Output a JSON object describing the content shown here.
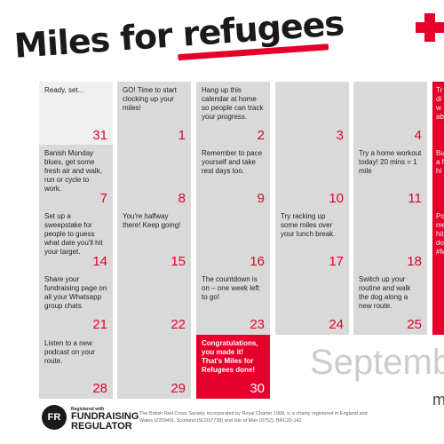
{
  "header": {
    "title_part1": "Miles for ",
    "title_part2": "refugees"
  },
  "cells": [
    {
      "text": "Ready, set...",
      "num": "31"
    },
    {
      "text": "GO! Time to start clocking up your miles!",
      "num": "1"
    },
    {
      "text": "Hang up this calendar at home so people can track your progress.",
      "num": "2"
    },
    {
      "text": "",
      "num": "3"
    },
    {
      "text": "",
      "num": "4"
    },
    {
      "text": "Banish Monday blues, get some fresh air and walk, run or cycle to work.",
      "num": "7"
    },
    {
      "text": "",
      "num": "8"
    },
    {
      "text": "Remember to pace yourself and take rest days too.",
      "num": "9"
    },
    {
      "text": "",
      "num": "10"
    },
    {
      "text": "Try a home workout today! 20 mins = 1 mile",
      "num": "11"
    },
    {
      "text": "Set up a sweepstake for people to guess what date you'll hit your target.",
      "num": "14"
    },
    {
      "text": "You're halfway there! Keep going!",
      "num": "15"
    },
    {
      "text": "",
      "num": "16"
    },
    {
      "text": "Try racking up some miles over your lunch break.",
      "num": "17"
    },
    {
      "text": "",
      "num": "18"
    },
    {
      "text": "Share your fundraising page on all your Whatsapp group chats.",
      "num": "21"
    },
    {
      "text": "",
      "num": "22"
    },
    {
      "text": "The countdown is on – one week left to go!",
      "num": "23"
    },
    {
      "text": "",
      "num": "24"
    },
    {
      "text": "Switch up your routine and walk the dog along a new route.",
      "num": "25"
    },
    {
      "text": "Listen to a new podcast on your route.",
      "num": "28"
    },
    {
      "text": "",
      "num": "29"
    },
    {
      "text": "Congratulations, you made it! That's Miles for Refugees done!",
      "num": "30"
    }
  ],
  "edge_cells": [
    {
      "text": "Tr\ndi\nw\nab"
    },
    {
      "text": "Bu\na f\nhi"
    },
    {
      "text": "Po\nme\nhit\ndo\n#M"
    },
    {
      "text": ""
    }
  ],
  "month_label": "Septemb",
  "tagline": "m",
  "regulator": {
    "logo": "FR",
    "registered_with": "Registered with",
    "line1": "FUNDRAISING",
    "line2": "REGULATOR"
  },
  "footnote": "The British Red Cross Society, incorporated by Royal Charter 1908, is a charity registered in England and Wales (220949), Scotland (SC037738) and Isle of Man (0752). BRC20-142",
  "colors": {
    "brand_red": "#e4002b",
    "cell_grey": "#d9d9d9"
  }
}
